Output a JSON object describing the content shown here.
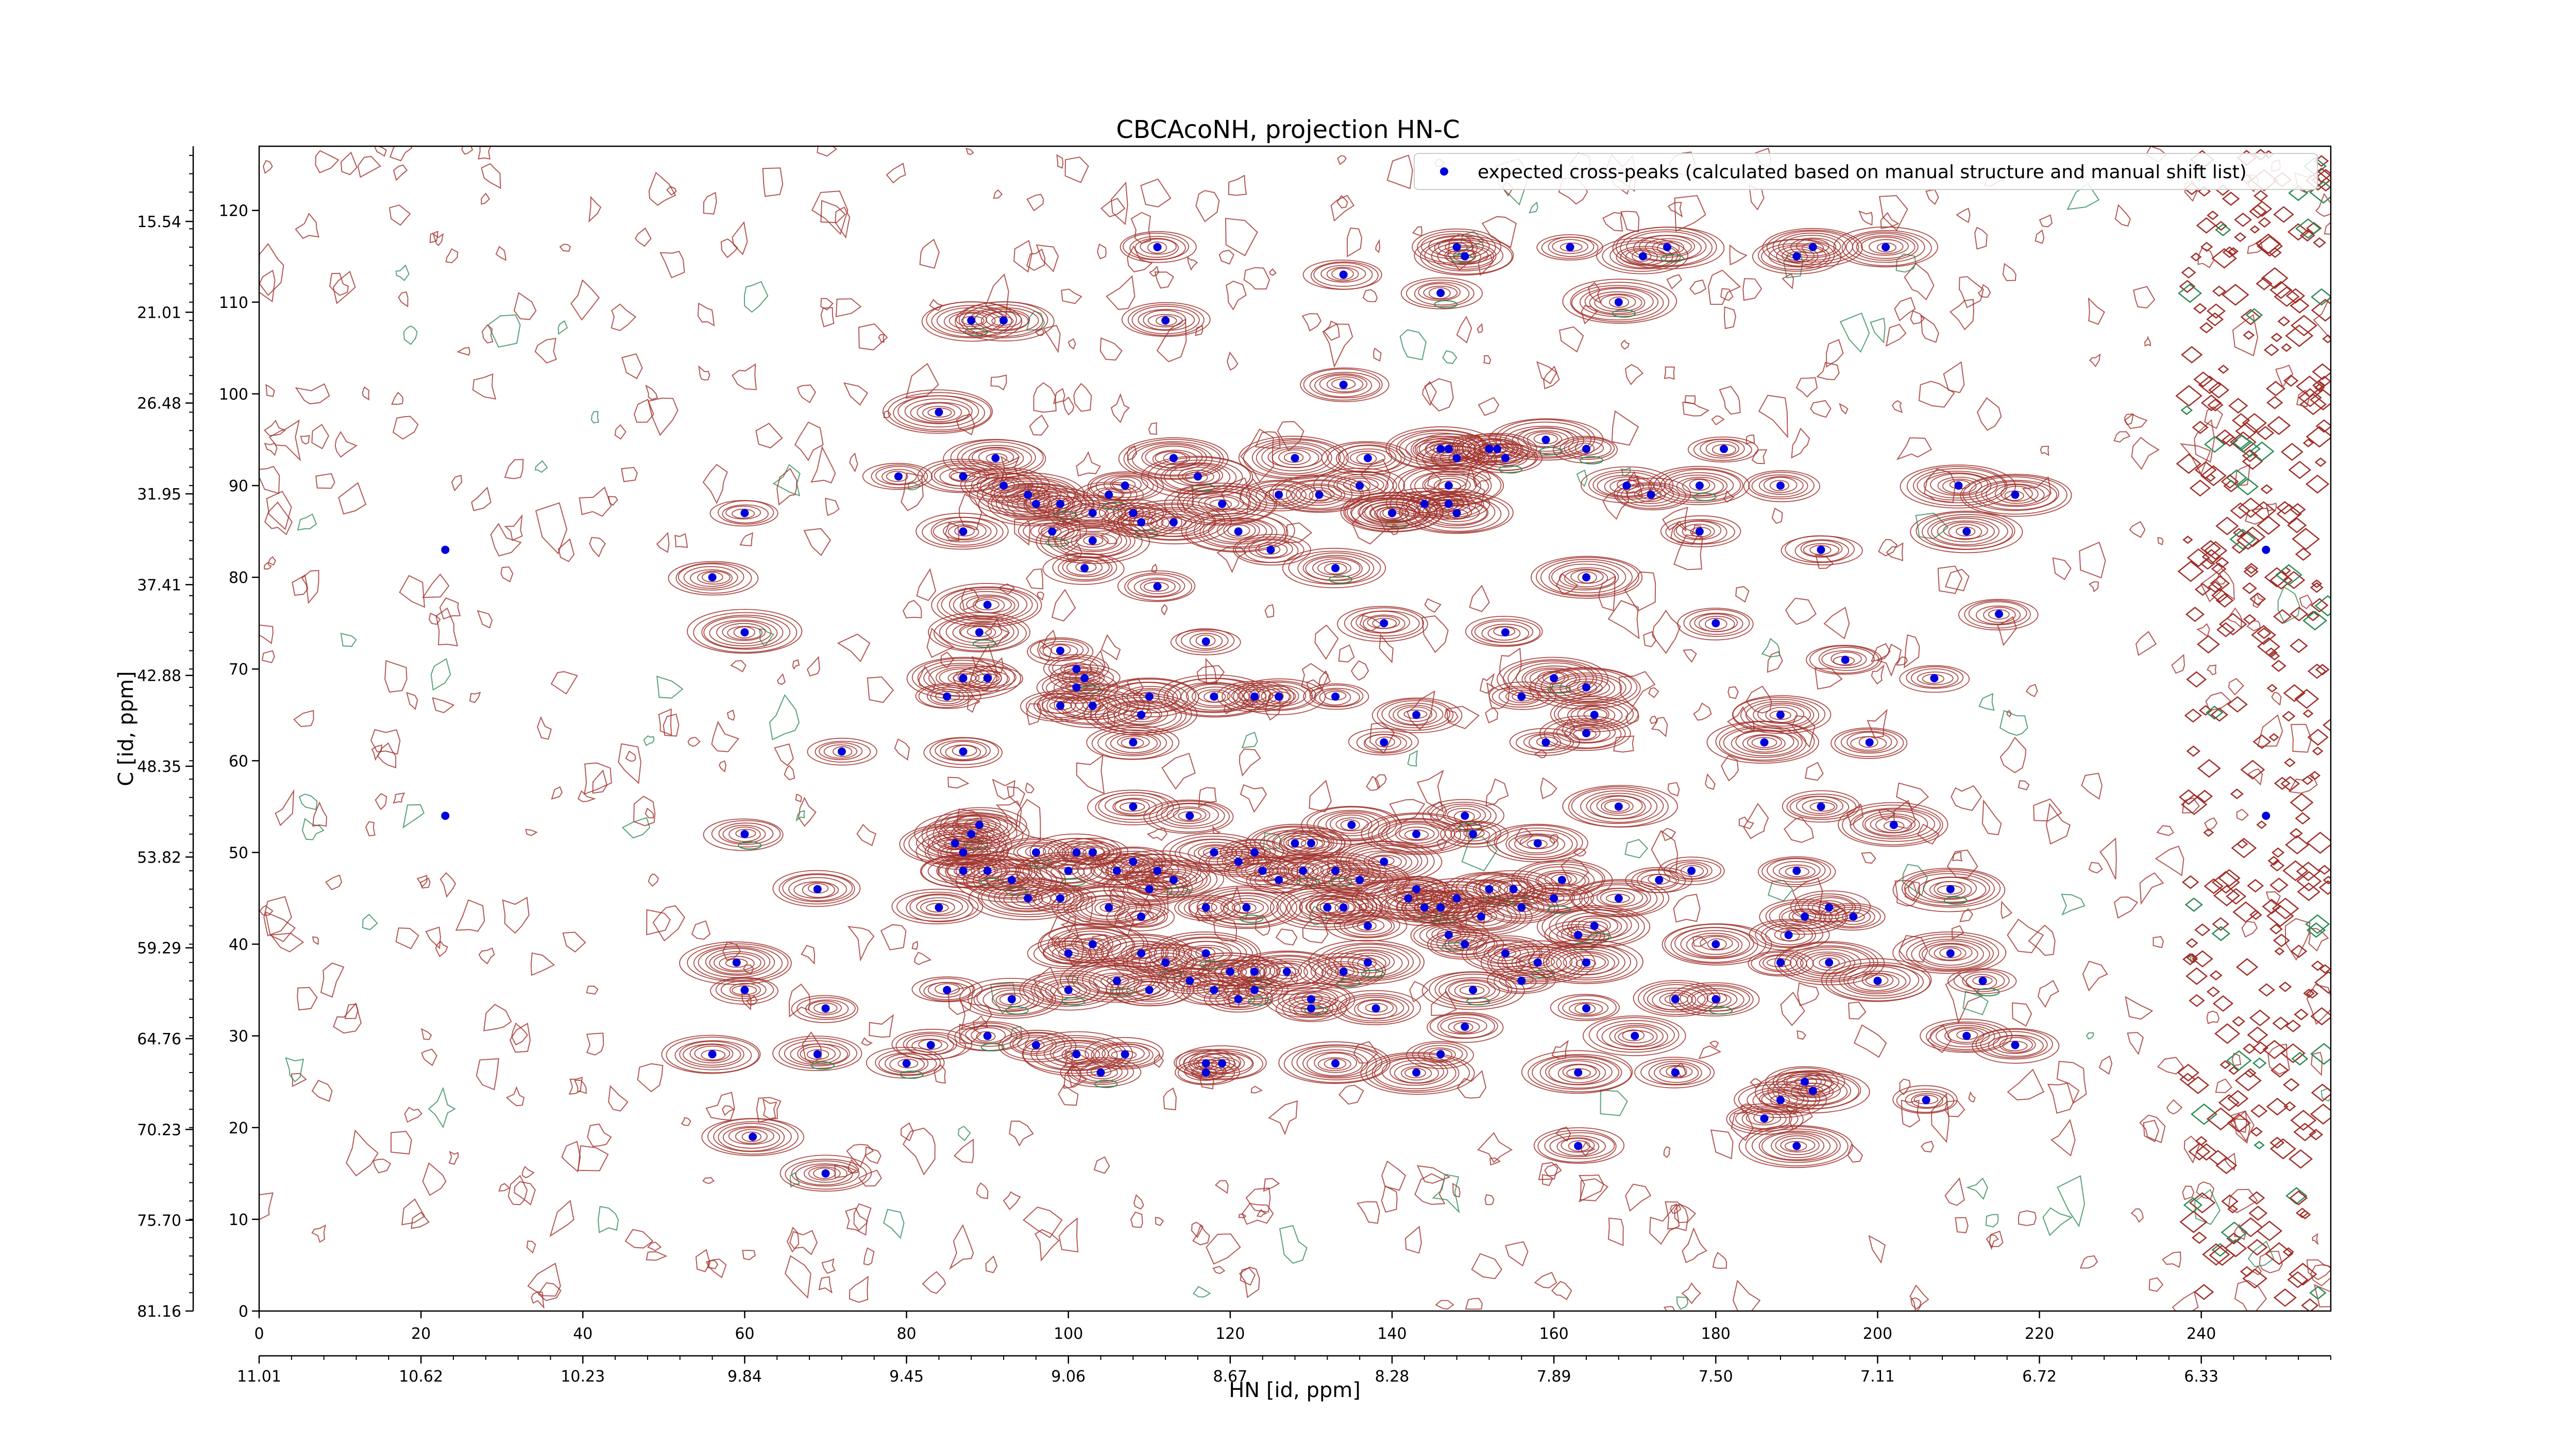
{
  "chart_data": {
    "type": "scatter",
    "title": "CBCAcoNH, projection HN-C",
    "xlabel": "HN [id, ppm]",
    "ylabel": "C [id, ppm]",
    "xlim": [
      0,
      256
    ],
    "ylim": [
      0,
      127
    ],
    "x_ticks": [
      "0",
      "20",
      "40",
      "60",
      "80",
      "100",
      "120",
      "140",
      "160",
      "180",
      "200",
      "220",
      "240"
    ],
    "x_tick_values": [
      0,
      20,
      40,
      60,
      80,
      100,
      120,
      140,
      160,
      180,
      200,
      220,
      240
    ],
    "x_ppm_ticks": [
      "11.01",
      "10.62",
      "10.23",
      "9.84",
      "9.45",
      "9.06",
      "8.67",
      "8.28",
      "7.89",
      "7.50",
      "7.11",
      "6.72",
      "6.33"
    ],
    "y_ticks": [
      "0",
      "10",
      "20",
      "30",
      "40",
      "50",
      "60",
      "70",
      "80",
      "90",
      "100",
      "110",
      "120"
    ],
    "y_tick_values": [
      0,
      10,
      20,
      30,
      40,
      50,
      60,
      70,
      80,
      90,
      100,
      110,
      120
    ],
    "y_ppm_ticks": [
      "81.16",
      "75.70",
      "70.23",
      "64.76",
      "59.29",
      "53.82",
      "48.35",
      "42.88",
      "37.41",
      "31.95",
      "26.48",
      "21.01",
      "15.54"
    ],
    "y_ppm_tick_values": [
      0,
      9.9,
      19.8,
      29.7,
      39.6,
      49.5,
      59.4,
      69.3,
      79.2,
      89.1,
      99.0,
      108.9,
      118.8
    ],
    "legend_position": "top-right",
    "colors": {
      "positive_contour": "#a0302a",
      "negative_contour": "#2e8b57",
      "peak_marker": "#0000dd"
    },
    "series": [
      {
        "name": "expected cross-peaks (calculated based on manual structure and manual shift list)",
        "points": [
          [
            111,
            116
          ],
          [
            134,
            113
          ],
          [
            148,
            116
          ],
          [
            149,
            115
          ],
          [
            146,
            111
          ],
          [
            162,
            116
          ],
          [
            171,
            115
          ],
          [
            174,
            116
          ],
          [
            168,
            110
          ],
          [
            190,
            115
          ],
          [
            192,
            116
          ],
          [
            201,
            116
          ],
          [
            88,
            108
          ],
          [
            92,
            108
          ],
          [
            112,
            108
          ],
          [
            84,
            98
          ],
          [
            134,
            101
          ],
          [
            137,
            93
          ],
          [
            146,
            94
          ],
          [
            147,
            94
          ],
          [
            148,
            93
          ],
          [
            152,
            94
          ],
          [
            153,
            94
          ],
          [
            154,
            93
          ],
          [
            159,
            95
          ],
          [
            164,
            94
          ],
          [
            181,
            94
          ],
          [
            169,
            90
          ],
          [
            79,
            91
          ],
          [
            87,
            91
          ],
          [
            91,
            93
          ],
          [
            92,
            90
          ],
          [
            95,
            89
          ],
          [
            96,
            88
          ],
          [
            99,
            88
          ],
          [
            103,
            87
          ],
          [
            105,
            89
          ],
          [
            107,
            90
          ],
          [
            108,
            87
          ],
          [
            113,
            93
          ],
          [
            116,
            91
          ],
          [
            119,
            88
          ],
          [
            126,
            89
          ],
          [
            128,
            93
          ],
          [
            131,
            89
          ],
          [
            136,
            90
          ],
          [
            140,
            87
          ],
          [
            144,
            88
          ],
          [
            147,
            88
          ],
          [
            148,
            87
          ],
          [
            147,
            90
          ],
          [
            172,
            89
          ],
          [
            178,
            90
          ],
          [
            188,
            90
          ],
          [
            210,
            90
          ],
          [
            217,
            89
          ],
          [
            60,
            87
          ],
          [
            87,
            85
          ],
          [
            98,
            85
          ],
          [
            103,
            84
          ],
          [
            109,
            86
          ],
          [
            113,
            86
          ],
          [
            121,
            85
          ],
          [
            125,
            83
          ],
          [
            133,
            81
          ],
          [
            140,
            87
          ],
          [
            178,
            85
          ],
          [
            193,
            83
          ],
          [
            211,
            85
          ],
          [
            56,
            80
          ],
          [
            102,
            81
          ],
          [
            111,
            79
          ],
          [
            90,
            77
          ],
          [
            89,
            74
          ],
          [
            60,
            74
          ],
          [
            117,
            73
          ],
          [
            139,
            75
          ],
          [
            154,
            74
          ],
          [
            164,
            80
          ],
          [
            180,
            75
          ],
          [
            215,
            76
          ],
          [
            99,
            72
          ],
          [
            102,
            69
          ],
          [
            90,
            69
          ],
          [
            101,
            70
          ],
          [
            118,
            67
          ],
          [
            123,
            67
          ],
          [
            126,
            67
          ],
          [
            110,
            67
          ],
          [
            99,
            66
          ],
          [
            101,
            68
          ],
          [
            103,
            66
          ],
          [
            85,
            67
          ],
          [
            87,
            69
          ],
          [
            109,
            65
          ],
          [
            133,
            67
          ],
          [
            143,
            65
          ],
          [
            156,
            67
          ],
          [
            160,
            69
          ],
          [
            165,
            65
          ],
          [
            164,
            68
          ],
          [
            188,
            65
          ],
          [
            196,
            71
          ],
          [
            207,
            69
          ],
          [
            72,
            61
          ],
          [
            87,
            61
          ],
          [
            108,
            62
          ],
          [
            139,
            62
          ],
          [
            159,
            62
          ],
          [
            164,
            63
          ],
          [
            186,
            62
          ],
          [
            199,
            62
          ],
          [
            60,
            52
          ],
          [
            88,
            52
          ],
          [
            89,
            53
          ],
          [
            108,
            55
          ],
          [
            115,
            54
          ],
          [
            130,
            51
          ],
          [
            135,
            53
          ],
          [
            149,
            54
          ],
          [
            150,
            52
          ],
          [
            143,
            52
          ],
          [
            158,
            51
          ],
          [
            168,
            55
          ],
          [
            193,
            55
          ],
          [
            202,
            53
          ],
          [
            86,
            51
          ],
          [
            87,
            50
          ],
          [
            87,
            48
          ],
          [
            90,
            48
          ],
          [
            93,
            47
          ],
          [
            96,
            50
          ],
          [
            100,
            48
          ],
          [
            101,
            50
          ],
          [
            103,
            50
          ],
          [
            106,
            48
          ],
          [
            108,
            49
          ],
          [
            111,
            48
          ],
          [
            113,
            47
          ],
          [
            118,
            50
          ],
          [
            121,
            49
          ],
          [
            123,
            50
          ],
          [
            124,
            48
          ],
          [
            126,
            47
          ],
          [
            128,
            51
          ],
          [
            129,
            48
          ],
          [
            133,
            48
          ],
          [
            136,
            47
          ],
          [
            139,
            49
          ],
          [
            142,
            45
          ],
          [
            143,
            46
          ],
          [
            144,
            44
          ],
          [
            146,
            44
          ],
          [
            148,
            45
          ],
          [
            151,
            43
          ],
          [
            152,
            46
          ],
          [
            155,
            46
          ],
          [
            156,
            44
          ],
          [
            160,
            45
          ],
          [
            161,
            47
          ],
          [
            168,
            45
          ],
          [
            173,
            47
          ],
          [
            177,
            48
          ],
          [
            190,
            48
          ],
          [
            194,
            44
          ],
          [
            197,
            43
          ],
          [
            209,
            46
          ],
          [
            69,
            46
          ],
          [
            84,
            44
          ],
          [
            95,
            45
          ],
          [
            99,
            45
          ],
          [
            105,
            44
          ],
          [
            109,
            43
          ],
          [
            110,
            46
          ],
          [
            117,
            44
          ],
          [
            122,
            44
          ],
          [
            132,
            44
          ],
          [
            134,
            44
          ],
          [
            137,
            42
          ],
          [
            147,
            41
          ],
          [
            149,
            40
          ],
          [
            154,
            39
          ],
          [
            163,
            41
          ],
          [
            165,
            42
          ],
          [
            180,
            40
          ],
          [
            189,
            41
          ],
          [
            191,
            43
          ],
          [
            59,
            38
          ],
          [
            100,
            39
          ],
          [
            103,
            40
          ],
          [
            109,
            39
          ],
          [
            112,
            38
          ],
          [
            117,
            39
          ],
          [
            120,
            37
          ],
          [
            123,
            37
          ],
          [
            127,
            37
          ],
          [
            134,
            37
          ],
          [
            137,
            38
          ],
          [
            158,
            38
          ],
          [
            164,
            38
          ],
          [
            188,
            38
          ],
          [
            194,
            38
          ],
          [
            209,
            39
          ],
          [
            60,
            35
          ],
          [
            85,
            35
          ],
          [
            93,
            34
          ],
          [
            100,
            35
          ],
          [
            106,
            36
          ],
          [
            110,
            35
          ],
          [
            115,
            36
          ],
          [
            118,
            35
          ],
          [
            121,
            34
          ],
          [
            123,
            35
          ],
          [
            130,
            34
          ],
          [
            130,
            33
          ],
          [
            138,
            33
          ],
          [
            150,
            35
          ],
          [
            156,
            36
          ],
          [
            164,
            33
          ],
          [
            175,
            34
          ],
          [
            180,
            34
          ],
          [
            200,
            36
          ],
          [
            213,
            36
          ],
          [
            70,
            33
          ],
          [
            56,
            28
          ],
          [
            83,
            29
          ],
          [
            90,
            30
          ],
          [
            96,
            29
          ],
          [
            101,
            28
          ],
          [
            107,
            28
          ],
          [
            117,
            27
          ],
          [
            119,
            27
          ],
          [
            133,
            27
          ],
          [
            146,
            28
          ],
          [
            149,
            31
          ],
          [
            170,
            30
          ],
          [
            211,
            30
          ],
          [
            217,
            29
          ],
          [
            69,
            28
          ],
          [
            80,
            27
          ],
          [
            104,
            26
          ],
          [
            117,
            26
          ],
          [
            143,
            26
          ],
          [
            163,
            26
          ],
          [
            175,
            26
          ],
          [
            191,
            25
          ],
          [
            188,
            23
          ],
          [
            192,
            24
          ],
          [
            186,
            21
          ],
          [
            206,
            23
          ],
          [
            163,
            18
          ],
          [
            190,
            18
          ],
          [
            61,
            19
          ],
          [
            70,
            15
          ],
          [
            23,
            83
          ],
          [
            23,
            54
          ],
          [
            248,
            83
          ],
          [
            248,
            54
          ]
        ]
      }
    ]
  }
}
